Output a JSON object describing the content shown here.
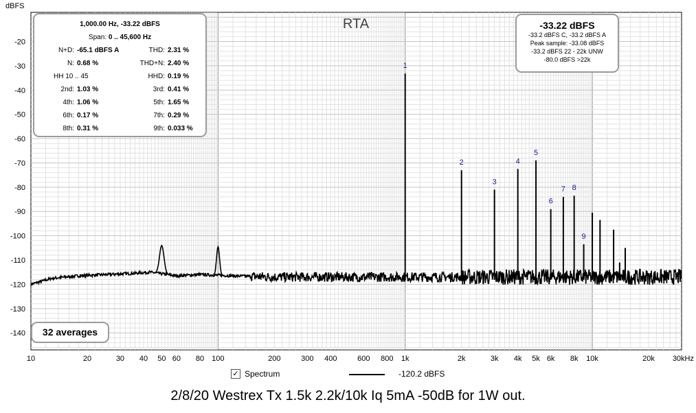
{
  "chart_data": {
    "type": "line",
    "title": "RTA",
    "ylabel": "dBFS",
    "xscale": "log",
    "xlim": [
      10,
      30000
    ],
    "ylim": [
      -147,
      -8
    ],
    "yticks": [
      -20,
      -30,
      -40,
      -50,
      -60,
      -70,
      -80,
      -90,
      -100,
      -110,
      -120,
      -130,
      -140
    ],
    "xticks": [
      {
        "v": 10,
        "l": "10"
      },
      {
        "v": 20,
        "l": "20"
      },
      {
        "v": 30,
        "l": "30"
      },
      {
        "v": 40,
        "l": "40"
      },
      {
        "v": 50,
        "l": "50"
      },
      {
        "v": 60,
        "l": "60"
      },
      {
        "v": 80,
        "l": "80"
      },
      {
        "v": 100,
        "l": "100"
      },
      {
        "v": 200,
        "l": "200"
      },
      {
        "v": 300,
        "l": "300"
      },
      {
        "v": 400,
        "l": "400"
      },
      {
        "v": 600,
        "l": "600"
      },
      {
        "v": 800,
        "l": "800"
      },
      {
        "v": 1000,
        "l": "1k"
      },
      {
        "v": 2000,
        "l": "2k"
      },
      {
        "v": 3000,
        "l": "3k"
      },
      {
        "v": 4000,
        "l": "4k"
      },
      {
        "v": 5000,
        "l": "5k"
      },
      {
        "v": 6000,
        "l": "6k"
      },
      {
        "v": 8000,
        "l": "8k"
      },
      {
        "v": 10000,
        "l": "10k"
      },
      {
        "v": 20000,
        "l": "20k"
      },
      {
        "v": 30000,
        "l": "30kHz"
      }
    ],
    "grid": true,
    "legend_position": "bottom-center",
    "series": [
      {
        "name": "Spectrum",
        "color": "#000000",
        "noise_floor": [
          [
            10,
            -120
          ],
          [
            13,
            -117.5
          ],
          [
            18,
            -116.5
          ],
          [
            25,
            -116
          ],
          [
            35,
            -115.5
          ],
          [
            43,
            -115
          ],
          [
            60,
            -116.5
          ],
          [
            80,
            -116
          ],
          [
            120,
            -116.5
          ],
          [
            200,
            -117
          ],
          [
            400,
            -117
          ],
          [
            800,
            -117
          ],
          [
            2000,
            -117
          ],
          [
            5000,
            -117
          ],
          [
            10000,
            -117
          ],
          [
            20000,
            -117
          ],
          [
            30000,
            -117
          ]
        ],
        "peaks": [
          {
            "f": 50,
            "db": -104,
            "label": ""
          },
          {
            "f": 100,
            "db": -104.5,
            "label": ""
          },
          {
            "f": 1000,
            "db": -33.2,
            "label": "1"
          },
          {
            "f": 2000,
            "db": -73,
            "label": "2"
          },
          {
            "f": 3000,
            "db": -81,
            "label": "3"
          },
          {
            "f": 4000,
            "db": -72.5,
            "label": "4"
          },
          {
            "f": 5000,
            "db": -69,
            "label": "5"
          },
          {
            "f": 6000,
            "db": -89,
            "label": "6"
          },
          {
            "f": 7000,
            "db": -84,
            "label": "7"
          },
          {
            "f": 8000,
            "db": -83.5,
            "label": "8"
          },
          {
            "f": 9000,
            "db": -103.5,
            "label": "9"
          },
          {
            "f": 10000,
            "db": -90.5,
            "label": ""
          },
          {
            "f": 11000,
            "db": -93.5,
            "label": ""
          },
          {
            "f": 13000,
            "db": -97.5,
            "label": ""
          },
          {
            "f": 15000,
            "db": -105,
            "label": ""
          },
          {
            "f": 14000,
            "db": -111,
            "label": ""
          }
        ]
      }
    ]
  },
  "stats": {
    "header1": "1,000.00 Hz, -33.22 dBFS",
    "span_label": "Span:",
    "span_value": "0 .. 45,600 Hz",
    "rows": [
      {
        "l1": "N+D:",
        "v1": "-65.1 dBFS A",
        "l2": "THD:",
        "v2": "2.31 %"
      },
      {
        "l1": "N:",
        "v1": "0.68 %",
        "l2": "THD+N:",
        "v2": "2.40 %"
      },
      {
        "l1": "HH 10 .. 45",
        "v1": "",
        "l2": "HHD:",
        "v2": "0.19 %"
      },
      {
        "l1": "2nd:",
        "v1": "1.03 %",
        "l2": "3rd:",
        "v2": "0.41 %"
      },
      {
        "l1": "4th:",
        "v1": "1.06 %",
        "l2": "5th:",
        "v2": "1.65 %"
      },
      {
        "l1": "6th:",
        "v1": "0.17 %",
        "l2": "7th:",
        "v2": "0.29 %"
      },
      {
        "l1": "8th:",
        "v1": "0.31 %",
        "l2": "9th:",
        "v2": "0.033 %"
      }
    ]
  },
  "level": {
    "main": "-33.22 dBFS",
    "line1": "-33.2 dBFS C, -33.2 dBFS A",
    "line2": "Peak sample: -33.08 dBFS",
    "line3": "-33.2 dBFS 22 - 22k UNW",
    "line4": "-80.0 dBFS >22k"
  },
  "averages": "32 averages",
  "legend": {
    "checked": true,
    "check_glyph": "✓",
    "label": "Spectrum",
    "value": "-120.2 dBFS"
  },
  "caption": "2/8/20 Westrex Tx 1.5k 2.2k/10k Iq 5mA -50dB for 1W out.",
  "colors": {
    "grid_minor": "#e2e2e2",
    "grid_major": "#8a8a8a",
    "peak_label": "#1a1aa0",
    "box_border": "#9a9a9a"
  }
}
